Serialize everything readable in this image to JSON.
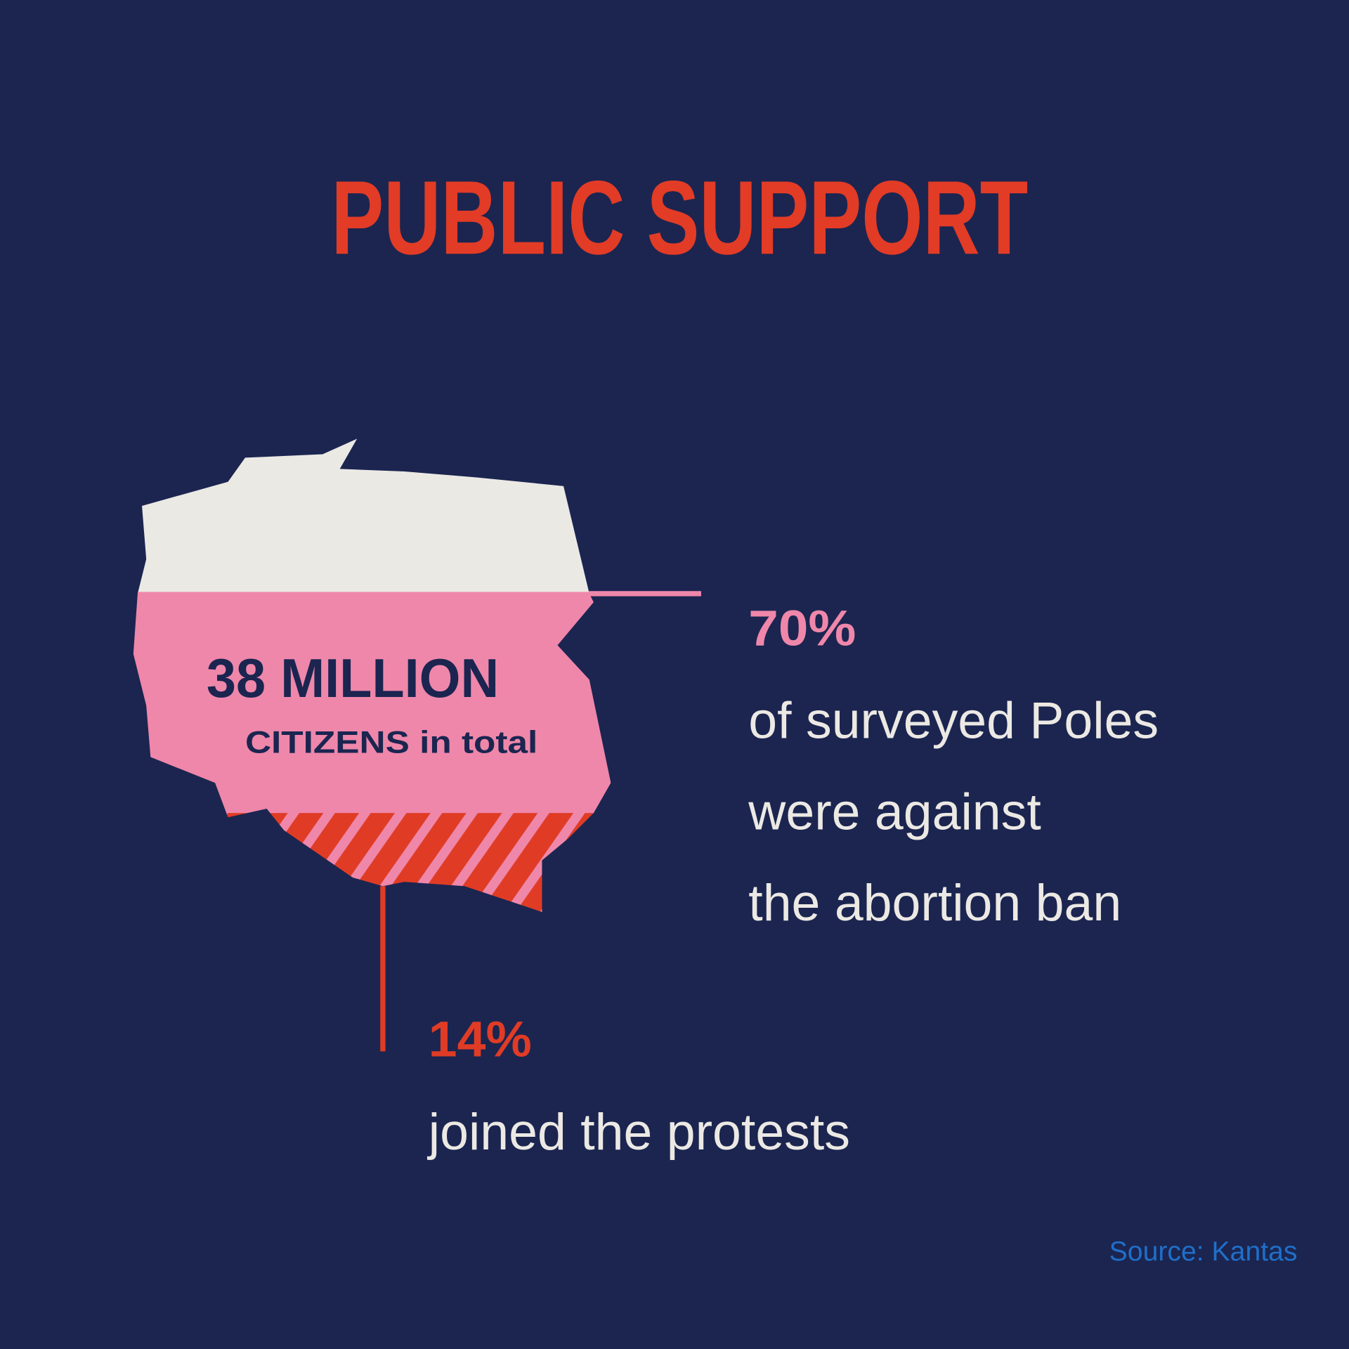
{
  "title": "PUBLIC SUPPORT",
  "map": {
    "total": "38 MILLION",
    "total_caption": "CITIZENS in total"
  },
  "stats": [
    {
      "value": "70%",
      "lines": [
        "of surveyed Poles",
        "were against",
        "the abortion ban"
      ]
    },
    {
      "value": "14%",
      "lines": [
        "joined the protests"
      ]
    }
  ],
  "source": "Source: Kantas"
}
